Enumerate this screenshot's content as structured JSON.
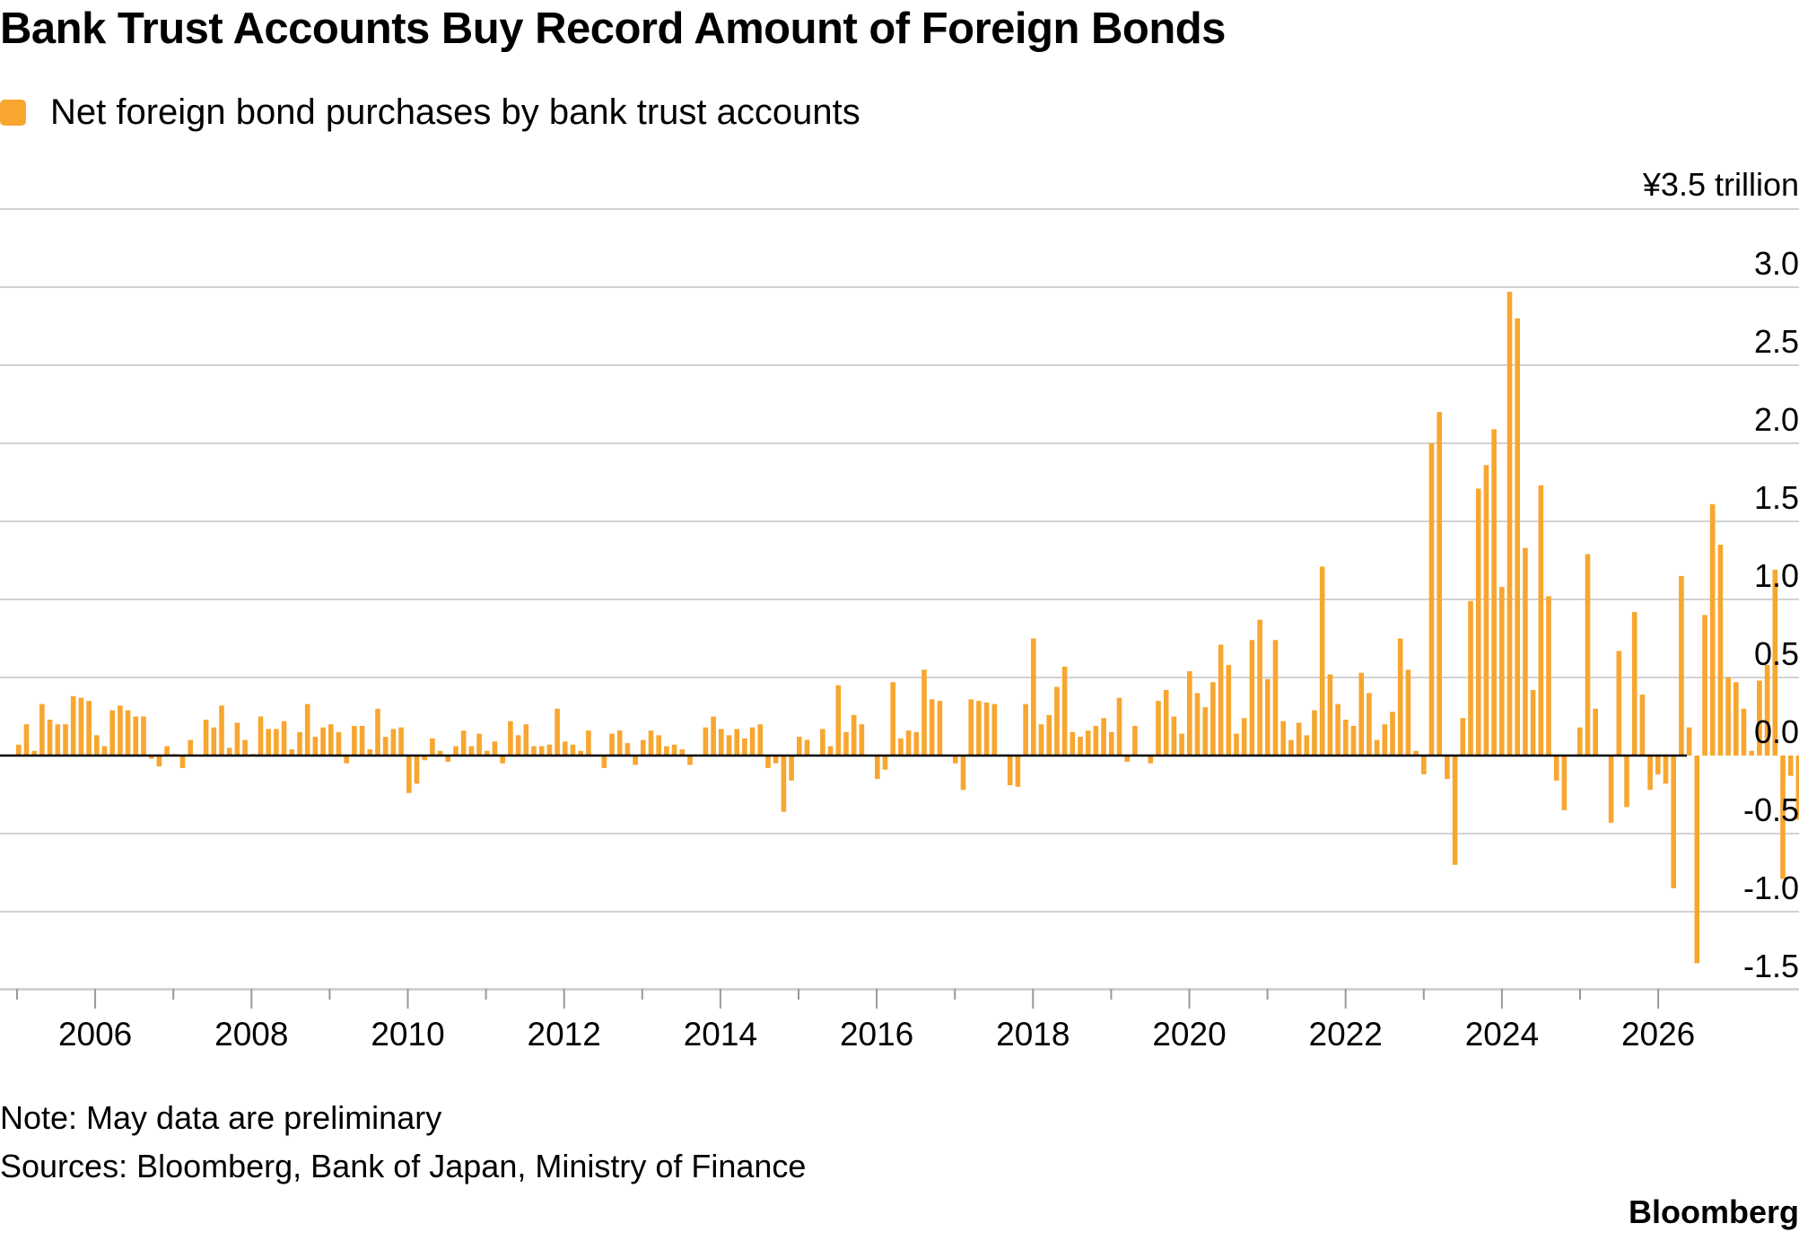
{
  "chart_data": {
    "type": "bar",
    "title": "Bank Trust Accounts Buy Record Amount of Foreign Bonds",
    "legend": {
      "entries": [
        "Net foreign bond purchases by bank trust accounts"
      ],
      "placement": "top-left"
    },
    "series": [
      {
        "name": "Net foreign bond purchases by bank trust accounts",
        "color": "#f7a630",
        "start_month": "2005-01",
        "frequency": "monthly",
        "values": [
          0.07,
          0.2,
          0.03,
          0.33,
          0.23,
          0.2,
          0.2,
          0.38,
          0.37,
          0.35,
          0.13,
          0.06,
          0.29,
          0.32,
          0.29,
          0.25,
          0.25,
          -0.02,
          -0.07,
          0.06,
          0.01,
          -0.08,
          0.1,
          0.0,
          0.23,
          0.18,
          0.32,
          0.05,
          0.21,
          0.1,
          0.01,
          0.25,
          0.17,
          0.17,
          0.22,
          0.04,
          0.15,
          0.33,
          0.12,
          0.18,
          0.2,
          0.15,
          -0.05,
          0.19,
          0.19,
          0.04,
          0.3,
          0.12,
          0.17,
          0.18,
          -0.24,
          -0.18,
          -0.03,
          0.11,
          0.03,
          -0.04,
          0.06,
          0.16,
          0.06,
          0.14,
          0.03,
          0.09,
          -0.05,
          0.22,
          0.13,
          0.2,
          0.06,
          0.06,
          0.07,
          0.3,
          0.09,
          0.07,
          0.03,
          0.16,
          0.0,
          -0.08,
          0.14,
          0.16,
          0.08,
          -0.06,
          0.1,
          0.16,
          0.13,
          0.06,
          0.07,
          0.04,
          -0.06,
          0.0,
          0.18,
          0.25,
          0.17,
          0.13,
          0.17,
          0.11,
          0.18,
          0.2,
          -0.08,
          -0.05,
          -0.36,
          -0.16,
          0.12,
          0.1,
          0.0,
          0.17,
          0.06,
          0.45,
          0.15,
          0.26,
          0.2,
          0.0,
          -0.15,
          -0.09,
          0.47,
          0.11,
          0.16,
          0.15,
          0.55,
          0.36,
          0.35,
          0.0,
          -0.05,
          -0.22,
          0.36,
          0.35,
          0.34,
          0.33,
          0.0,
          -0.19,
          -0.2,
          0.33,
          0.75,
          0.2,
          0.26,
          0.44,
          0.57,
          0.15,
          0.12,
          0.16,
          0.19,
          0.24,
          0.15,
          0.37,
          -0.04,
          0.19,
          0.0,
          -0.05,
          0.35,
          0.42,
          0.25,
          0.14,
          0.54,
          0.4,
          0.31,
          0.47,
          0.71,
          0.58,
          0.14,
          0.24,
          0.74,
          0.87,
          0.49,
          0.74,
          0.22,
          0.1,
          0.21,
          0.13,
          0.29,
          1.21,
          0.52,
          0.33,
          0.23,
          0.19,
          0.53,
          0.4,
          0.1,
          0.2,
          0.28,
          0.75,
          0.55,
          0.03,
          -0.12,
          2.0,
          2.2,
          -0.15,
          -0.7,
          0.24,
          0.99,
          1.71,
          1.86,
          2.09,
          1.08,
          2.97,
          2.8,
          1.33,
          0.42,
          1.73,
          1.02,
          -0.16,
          -0.35,
          0.0,
          0.18,
          1.29,
          0.3,
          0.0,
          -0.43,
          0.67,
          -0.33,
          0.92,
          0.39,
          -0.22,
          -0.12,
          -0.18,
          -0.85,
          1.15,
          0.18,
          -1.33,
          0.9,
          1.61,
          1.35,
          0.5,
          0.47,
          0.3,
          0.03,
          0.48,
          0.58,
          1.19,
          -0.79,
          -0.13,
          -0.41,
          1.11,
          0.36,
          1.11,
          1.47,
          0.0,
          -0.48,
          -0.27,
          -0.15,
          -0.05,
          0.38,
          2.85,
          0.59,
          -0.02,
          -0.19,
          0.24,
          0.17,
          0.0,
          0.53,
          1.54,
          -0.76,
          -0.76,
          0.62,
          1.55,
          0.39,
          2.0,
          0.86,
          0.54,
          0.48,
          -0.13,
          0.78,
          1.24,
          -0.59,
          0.91
        ]
      }
    ],
    "x_axis": {
      "ticks": [
        "2006",
        "2008",
        "2010",
        "2012",
        "2014",
        "2016",
        "2018",
        "2020",
        "2022",
        "2024",
        "2026"
      ]
    },
    "y_axis": {
      "unit_label": "¥3.5 trillion",
      "ticks": [
        "3.0",
        "2.5",
        "2.0",
        "1.5",
        "1.0",
        "0.5",
        "0.0",
        "-0.5",
        "-1.0",
        "-1.5"
      ],
      "range": [
        -1.5,
        3.5
      ],
      "position": "right"
    },
    "grid": true,
    "latest_marker": "vertical line after latest (preliminary) month"
  },
  "footer": {
    "note": "Note: May data are preliminary",
    "sources": "Sources: Bloomberg, Bank of Japan, Ministry of Finance",
    "brand": "Bloomberg"
  }
}
